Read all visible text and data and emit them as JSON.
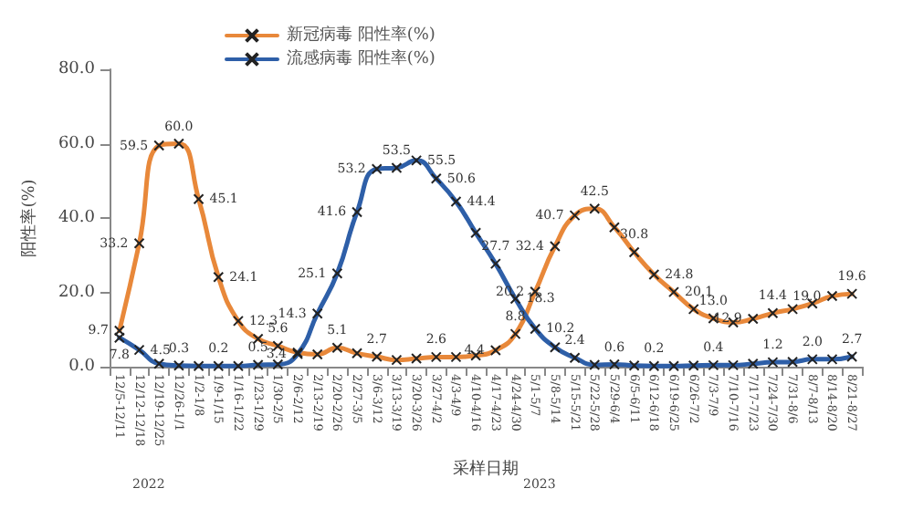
{
  "chart_data": {
    "type": "line",
    "xlabel": "采样日期",
    "ylabel": "阳性率(%)",
    "categories": [
      "12/5-12/11",
      "12/12-12/18",
      "12/19-12/25",
      "12/26-1/1",
      "1/2-1/8",
      "1/9-1/15",
      "1/16-1/22",
      "1/23-1/29",
      "1/30-2/5",
      "2/6-2/12",
      "2/13-2/19",
      "2/20-2/26",
      "2/27-3/5",
      "3/6-3/12",
      "3/13-3/19",
      "3/20-3/26",
      "3/27-4/2",
      "4/3-4/9",
      "4/10-4/16",
      "4/17-4/23",
      "4/24-4/30",
      "5/1-5/7",
      "5/8-5/14",
      "5/15-5/21",
      "5/22-5/28",
      "5/29-6/4",
      "6/5-6/11",
      "6/12-6/18",
      "6/19-6/25",
      "6/26-7/2",
      "7/3-7/9",
      "7/10-7/16",
      "7/17-7/23",
      "7/24-7/30",
      "7/31-8/6",
      "8/7-8/13",
      "8/14-8/20",
      "8/21-8/27"
    ],
    "series": [
      {
        "name": "新冠病毒 阳性率(%)",
        "color": "#e8883a",
        "values": [
          9.7,
          33.2,
          59.5,
          60.0,
          45.1,
          24.1,
          12.3,
          7.5,
          5.6,
          3.8,
          3.3,
          5.1,
          3.6,
          2.7,
          1.8,
          2.2,
          2.6,
          2.6,
          3.0,
          4.4,
          8.8,
          20.2,
          32.4,
          40.7,
          42.5,
          37.5,
          30.8,
          24.8,
          20.1,
          15.5,
          13.0,
          11.9,
          12.9,
          14.4,
          15.5,
          17.0,
          19.0,
          19.6
        ],
        "value_labels": [
          "9.7",
          "33.2",
          "59.5",
          "60.0",
          "45.1",
          "24.1",
          "12.3",
          null,
          "5.6",
          null,
          null,
          "5.1",
          null,
          "2.7",
          null,
          null,
          "2.6",
          null,
          null,
          "4.4",
          "8.8",
          "20.2",
          "32.4",
          "40.7",
          "42.5",
          null,
          "30.8",
          "24.8",
          "20.1",
          null,
          "13.0",
          null,
          "12.9",
          "14.4",
          null,
          null,
          "19.0",
          "19.6"
        ]
      },
      {
        "name": "流感病毒 阳性率(%)",
        "color": "#2e5fa8",
        "values": [
          7.8,
          4.5,
          0.8,
          0.3,
          0.2,
          0.2,
          0.2,
          0.5,
          0.6,
          3.4,
          14.3,
          25.1,
          41.6,
          53.2,
          53.5,
          55.5,
          50.6,
          44.4,
          36.0,
          27.7,
          18.3,
          10.2,
          5.2,
          2.4,
          0.5,
          0.6,
          0.3,
          0.2,
          0.2,
          0.3,
          0.4,
          0.4,
          0.8,
          1.2,
          1.3,
          2.0,
          2.0,
          2.7
        ],
        "value_labels": [
          "7.8",
          "4.5",
          null,
          "0.3",
          null,
          "0.2",
          null,
          "0.5",
          null,
          "3.4",
          "14.3",
          "25.1",
          "41.6",
          "53.2",
          "53.5",
          "55.5",
          "50.6",
          "44.4",
          null,
          "27.7",
          "18.3",
          "10.2",
          null,
          "2.4",
          null,
          "0.6",
          null,
          "0.2",
          null,
          null,
          "0.4",
          null,
          null,
          "1.2",
          null,
          "2.0",
          null,
          "2.7"
        ]
      }
    ],
    "ylim": [
      0,
      80
    ],
    "yticks": [
      {
        "value": 0,
        "label": "0.0"
      },
      {
        "value": 20,
        "label": "20.0"
      },
      {
        "value": 40,
        "label": "40.0"
      },
      {
        "value": 60,
        "label": "60.0"
      },
      {
        "value": 80,
        "label": "80.0"
      }
    ],
    "grid": false,
    "legend": "top left",
    "marker": "cross",
    "line_style": "solid",
    "annotations": [
      "2022",
      "2023"
    ]
  }
}
